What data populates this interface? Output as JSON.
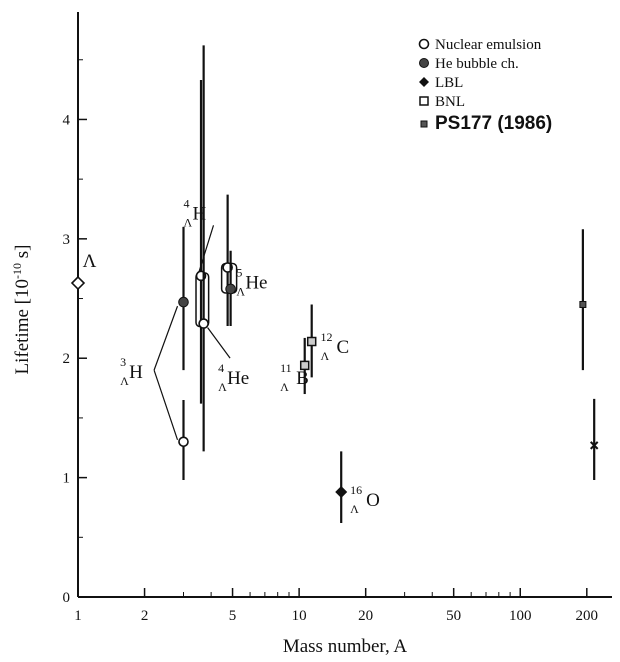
{
  "chart_data": {
    "type": "scatter",
    "xlabel": "Mass number, A",
    "ylabel_main": "Lifetime  [10",
    "ylabel_exp": "-10",
    "ylabel_unit": " s]",
    "x_scale": "log",
    "xlim": [
      1,
      260
    ],
    "ylim": [
      0,
      4.9
    ],
    "x_ticks": [
      {
        "value": 1,
        "label": "1"
      },
      {
        "value": 2,
        "label": "2"
      },
      {
        "value": 5,
        "label": "5"
      },
      {
        "value": 10,
        "label": "10"
      },
      {
        "value": 20,
        "label": "20"
      },
      {
        "value": 50,
        "label": "50"
      },
      {
        "value": 100,
        "label": "100"
      },
      {
        "value": 200,
        "label": "200"
      }
    ],
    "x_minor_ticks": [
      3,
      4,
      6,
      7,
      8,
      9,
      30,
      40,
      60,
      70,
      80,
      90
    ],
    "y_ticks": [
      {
        "value": 0,
        "label": "0"
      },
      {
        "value": 1,
        "label": "1"
      },
      {
        "value": 2,
        "label": "2"
      },
      {
        "value": 3,
        "label": "3"
      },
      {
        "value": 4,
        "label": "4"
      }
    ],
    "legend": {
      "position": "top-right",
      "entries": [
        {
          "marker": "open-circle",
          "label": "Nuclear emulsion"
        },
        {
          "marker": "filled-circle",
          "label": "He bubble ch."
        },
        {
          "marker": "diamond",
          "label": "LBL"
        },
        {
          "marker": "open-square",
          "label": "BNL"
        },
        {
          "marker": "small-square",
          "label": "PS177 (1986)",
          "bold": true
        }
      ]
    },
    "points": [
      {
        "x": 1,
        "y": 2.63,
        "ylo": 2.63,
        "yhi": 2.63,
        "marker": "open-diamond"
      },
      {
        "x": 3,
        "y": 2.47,
        "ylo": 1.9,
        "yhi": 3.1,
        "marker": "filled-circle"
      },
      {
        "x": 3,
        "y": 1.3,
        "ylo": 0.98,
        "yhi": 1.65,
        "marker": "open-circle"
      },
      {
        "x": 3.6,
        "y": 2.69,
        "ylo": 1.62,
        "yhi": 4.33,
        "marker": "open-circle"
      },
      {
        "x": 3.7,
        "y": 2.29,
        "ylo": 1.22,
        "yhi": 4.62,
        "marker": "open-circle"
      },
      {
        "x": 4.75,
        "y": 2.76,
        "ylo": 2.27,
        "yhi": 3.37,
        "marker": "open-circle"
      },
      {
        "x": 4.9,
        "y": 2.58,
        "ylo": 2.27,
        "yhi": 2.9,
        "marker": "filled-circle"
      },
      {
        "x": 10.6,
        "y": 1.94,
        "ylo": 1.7,
        "yhi": 2.17,
        "marker": "open-square"
      },
      {
        "x": 11.4,
        "y": 2.14,
        "ylo": 1.84,
        "yhi": 2.45,
        "marker": "open-square"
      },
      {
        "x": 15.5,
        "y": 0.88,
        "ylo": 0.62,
        "yhi": 1.22,
        "marker": "diamond"
      },
      {
        "x": 192,
        "y": 2.45,
        "ylo": 1.9,
        "yhi": 3.08,
        "marker": "small-square"
      },
      {
        "x": 216,
        "y": 1.27,
        "ylo": 0.98,
        "yhi": 1.66,
        "marker": "cross"
      }
    ],
    "labels": [
      {
        "sup": "",
        "sub": "",
        "sym": "Λ",
        "x": 1.05,
        "y": 2.78
      },
      {
        "sup": "3",
        "sub": "Λ",
        "sym": "H",
        "x": 1.55,
        "y": 1.85
      },
      {
        "sup": "4",
        "sub": "Λ",
        "sym": "H",
        "x": 3.0,
        "y": 3.18
      },
      {
        "sup": "5",
        "sub": "Λ",
        "sym": "He",
        "x": 5.2,
        "y": 2.6
      },
      {
        "sup": "4",
        "sub": "Λ",
        "sym": "He",
        "x": 4.3,
        "y": 1.8
      },
      {
        "sup": "11",
        "sub": "Λ",
        "sym": "B",
        "x": 8.2,
        "y": 1.8
      },
      {
        "sup": "12",
        "sub": "Λ",
        "sym": "C",
        "x": 12.5,
        "y": 2.06
      },
      {
        "sup": "16",
        "sub": "Λ",
        "sym": "O",
        "x": 17.0,
        "y": 0.78
      }
    ]
  }
}
